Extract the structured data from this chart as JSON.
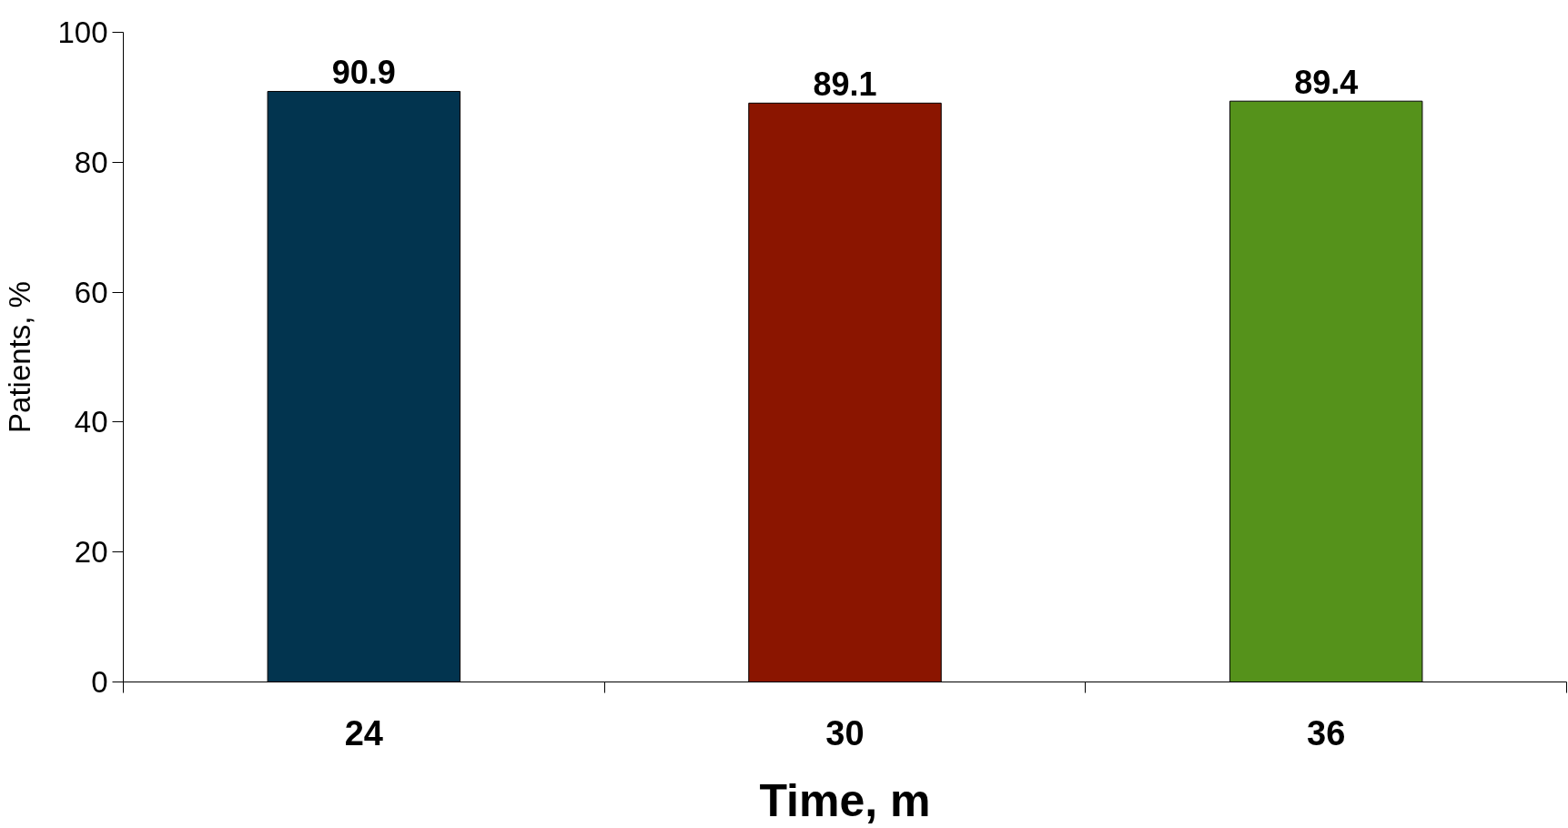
{
  "chart_data": {
    "type": "bar",
    "xlabel": "Time, m",
    "ylabel": "Patients, %",
    "categories": [
      "24",
      "30",
      "36"
    ],
    "values": [
      90.9,
      89.1,
      89.4
    ],
    "colors": [
      "#02344f",
      "#8b1500",
      "#55921b"
    ],
    "ylim": [
      0,
      100
    ],
    "yticks": [
      0,
      20,
      40,
      60,
      80,
      100
    ],
    "data_labels": true,
    "grid": false
  }
}
